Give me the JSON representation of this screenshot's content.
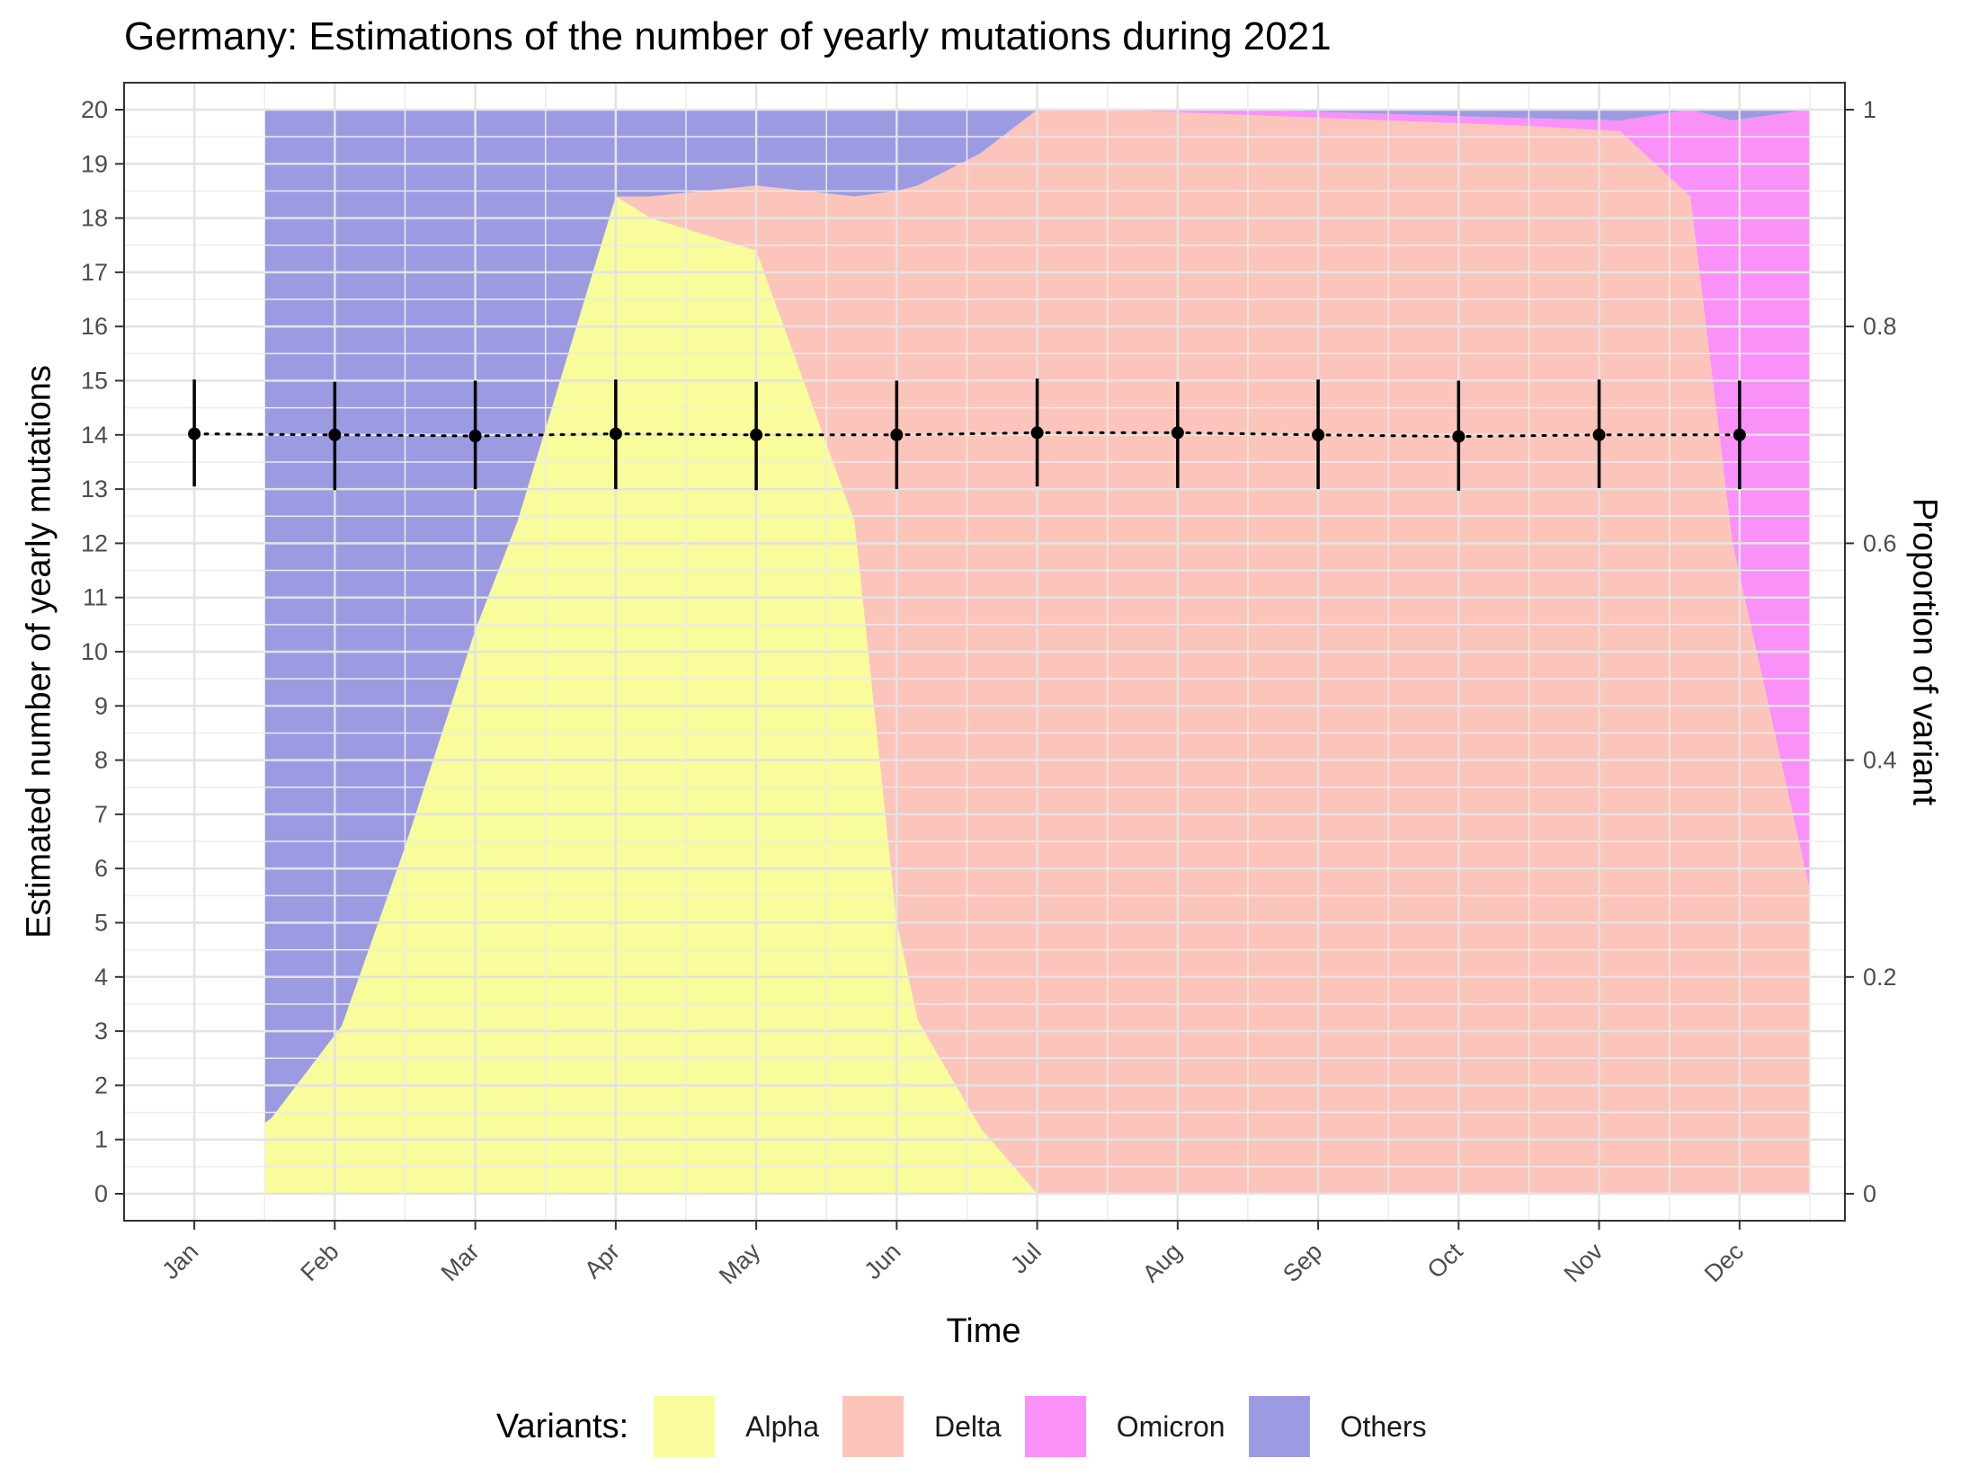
{
  "chart_data": {
    "type": "area",
    "title": "Germany: Estimations of the number of yearly mutations during 2021",
    "xlabel": "Time",
    "ylabel": "Estimated number of yearly mutations",
    "ylabel_right": "Proportion of variant",
    "x_ticks": [
      "Jan",
      "Feb",
      "Mar",
      "Apr",
      "May",
      "Jun",
      "Jul",
      "Aug",
      "Sep",
      "Oct",
      "Nov",
      "Dec"
    ],
    "ylim": [
      0,
      20
    ],
    "y_ticks": [
      0,
      1,
      2,
      3,
      4,
      5,
      6,
      7,
      8,
      9,
      10,
      11,
      12,
      13,
      14,
      15,
      16,
      17,
      18,
      19,
      20
    ],
    "ylim_right": [
      0,
      1
    ],
    "y_ticks_right": [
      "0",
      "0.2",
      "0.4",
      "0.6",
      "0.8",
      "1"
    ],
    "legend_title": "Variants:",
    "legend_position": "bottom",
    "grid": true,
    "variants": [
      {
        "name": "Alpha",
        "color": "#f8fc9a"
      },
      {
        "name": "Delta",
        "color": "#fcc5bb"
      },
      {
        "name": "Omicron",
        "color": "#f991f8"
      },
      {
        "name": "Others",
        "color": "#9c9be2"
      }
    ],
    "proportions": {
      "x": [
        0.5,
        0.55,
        1.05,
        1.5,
        2.0,
        2.3,
        3.0,
        3.25,
        4.0,
        4.7,
        5.0,
        5.15,
        5.6,
        6.0,
        6.35,
        6.5,
        7.5,
        9.5,
        10.15,
        10.65,
        10.95,
        11.5
      ],
      "alpha": [
        0.065,
        0.07,
        0.155,
        0.32,
        0.52,
        0.62,
        0.92,
        0.9,
        0.87,
        0.62,
        0.25,
        0.16,
        0.06,
        0.0,
        0.0,
        0.0,
        0.0,
        0.0,
        0.0,
        0.0,
        0.0,
        0.0
      ],
      "delta_top": [
        0.065,
        0.07,
        0.155,
        0.32,
        0.52,
        0.62,
        0.92,
        0.92,
        0.93,
        0.92,
        0.925,
        0.93,
        0.96,
        1.0,
        1.0,
        1.0,
        0.995,
        0.985,
        0.98,
        0.92,
        0.6,
        0.28
      ],
      "omicron_top": [
        0.065,
        0.07,
        0.155,
        0.32,
        0.52,
        0.62,
        0.92,
        0.92,
        0.93,
        0.92,
        0.925,
        0.93,
        0.96,
        1.0,
        1.0,
        1.0,
        1.0,
        0.992,
        0.99,
        1.0,
        0.99,
        1.0
      ],
      "others_top": [
        1,
        1,
        1,
        1,
        1,
        1,
        1,
        1,
        1,
        1,
        1,
        1,
        1,
        1,
        1,
        1,
        1,
        1,
        1,
        1,
        1,
        1
      ]
    },
    "series": [
      {
        "x": [
          "Jan",
          "Feb",
          "Mar",
          "Apr",
          "May",
          "Jun",
          "Jul",
          "Aug",
          "Sep",
          "Oct",
          "Nov",
          "Dec"
        ],
        "values": [
          14.02,
          14.0,
          13.98,
          14.02,
          14.0,
          14.0,
          14.04,
          14.04,
          14.0,
          13.97,
          14.0,
          14.0
        ],
        "lower": [
          13.05,
          12.98,
          13.0,
          13.0,
          12.98,
          13.0,
          13.05,
          13.02,
          13.0,
          12.97,
          13.02,
          13.0
        ],
        "upper": [
          15.02,
          14.98,
          15.0,
          15.02,
          14.98,
          15.0,
          15.04,
          14.98,
          15.02,
          15.0,
          15.02,
          15.0
        ]
      }
    ]
  }
}
